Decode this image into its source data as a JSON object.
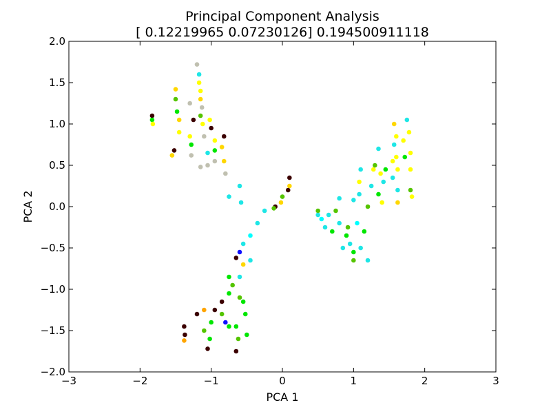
{
  "chart_data": {
    "type": "scatter",
    "title": "Principal Component Analysis",
    "subtitle": "[ 0.12219965  0.07230126] 0.194500911118",
    "xlabel": "PCA 1",
    "ylabel": "PCA 2",
    "xlim": [
      -3,
      3
    ],
    "ylim": [
      -2,
      2
    ],
    "xticks": [
      -3,
      -2,
      -1,
      0,
      1,
      2,
      3
    ],
    "xtick_labels": [
      "−3",
      "−2",
      "−1",
      "0",
      "1",
      "2",
      "3"
    ],
    "yticks": [
      -2,
      -1.5,
      -1,
      -0.5,
      0,
      0.5,
      1,
      1.5,
      2
    ],
    "ytick_labels": [
      "−2.0",
      "−1.5",
      "−1.0",
      "−0.5",
      "0.0",
      "0.5",
      "1.0",
      "1.5",
      "2.0"
    ],
    "grid": false,
    "legend": "none",
    "point_colors": [
      "#3b0000",
      "#00e600",
      "#ffff00",
      "#ffd700",
      "#c0c0b0",
      "#1ee6e6",
      "#55c400",
      "#ffa500",
      "#1010ff",
      "#00ffff"
    ],
    "points": [
      {
        "x": -1.83,
        "y": 1.1,
        "color": "#3b0000"
      },
      {
        "x": -1.83,
        "y": 1.05,
        "color": "#00e600"
      },
      {
        "x": -1.82,
        "y": 1.0,
        "color": "#ffff00"
      },
      {
        "x": -1.52,
        "y": 0.68,
        "color": "#3b0000"
      },
      {
        "x": -1.55,
        "y": 0.62,
        "color": "#ffd700"
      },
      {
        "x": -1.5,
        "y": 1.42,
        "color": "#ffd700"
      },
      {
        "x": -1.5,
        "y": 1.3,
        "color": "#55c400"
      },
      {
        "x": -1.48,
        "y": 1.15,
        "color": "#00e600"
      },
      {
        "x": -1.45,
        "y": 1.05,
        "color": "#ffd700"
      },
      {
        "x": -1.45,
        "y": 0.9,
        "color": "#ffff00"
      },
      {
        "x": -1.3,
        "y": 1.25,
        "color": "#c0c0b0"
      },
      {
        "x": -1.25,
        "y": 1.05,
        "color": "#3b0000"
      },
      {
        "x": -1.3,
        "y": 0.85,
        "color": "#ffff00"
      },
      {
        "x": -1.28,
        "y": 0.75,
        "color": "#00e600"
      },
      {
        "x": -1.28,
        "y": 0.62,
        "color": "#c0c0b0"
      },
      {
        "x": -1.2,
        "y": 1.72,
        "color": "#c0c0b0"
      },
      {
        "x": -1.17,
        "y": 1.6,
        "color": "#1ee6e6"
      },
      {
        "x": -1.17,
        "y": 1.5,
        "color": "#ffff00"
      },
      {
        "x": -1.15,
        "y": 1.4,
        "color": "#ffff00"
      },
      {
        "x": -1.15,
        "y": 1.3,
        "color": "#ffd700"
      },
      {
        "x": -1.13,
        "y": 1.2,
        "color": "#c0c0b0"
      },
      {
        "x": -1.15,
        "y": 1.1,
        "color": "#55c400"
      },
      {
        "x": -1.12,
        "y": 1.0,
        "color": "#ffff00"
      },
      {
        "x": -1.1,
        "y": 0.85,
        "color": "#c0c0b0"
      },
      {
        "x": -1.05,
        "y": 0.65,
        "color": "#1ee6e6"
      },
      {
        "x": -1.05,
        "y": 0.5,
        "color": "#c0c0b0"
      },
      {
        "x": -1.15,
        "y": 0.48,
        "color": "#c0c0b0"
      },
      {
        "x": -1.02,
        "y": 1.05,
        "color": "#ffff00"
      },
      {
        "x": -1.0,
        "y": 0.95,
        "color": "#3b0000"
      },
      {
        "x": -0.95,
        "y": 0.8,
        "color": "#ffff00"
      },
      {
        "x": -0.95,
        "y": 0.68,
        "color": "#00e600"
      },
      {
        "x": -0.95,
        "y": 0.55,
        "color": "#c0c0b0"
      },
      {
        "x": -0.85,
        "y": 0.72,
        "color": "#ffd700"
      },
      {
        "x": -0.82,
        "y": 0.55,
        "color": "#ffd700"
      },
      {
        "x": -0.8,
        "y": 0.4,
        "color": "#c0c0b0"
      },
      {
        "x": -0.82,
        "y": 0.85,
        "color": "#3b0000"
      },
      {
        "x": -0.75,
        "y": 0.12,
        "color": "#1ee6e6"
      },
      {
        "x": -0.6,
        "y": 0.25,
        "color": "#1ee6e6"
      },
      {
        "x": -0.58,
        "y": 0.05,
        "color": "#1ee6e6"
      },
      {
        "x": 0.1,
        "y": 0.35,
        "color": "#3b0000"
      },
      {
        "x": 0.1,
        "y": 0.25,
        "color": "#ffd700"
      },
      {
        "x": 0.08,
        "y": 0.2,
        "color": "#3b0000"
      },
      {
        "x": 0.0,
        "y": 0.12,
        "color": "#55c400"
      },
      {
        "x": -0.02,
        "y": 0.05,
        "color": "#ffd700"
      },
      {
        "x": -0.1,
        "y": 0.0,
        "color": "#3b0000"
      },
      {
        "x": -0.12,
        "y": -0.02,
        "color": "#55c400"
      },
      {
        "x": -0.25,
        "y": -0.05,
        "color": "#1ee6e6"
      },
      {
        "x": -0.35,
        "y": -0.2,
        "color": "#1ee6e6"
      },
      {
        "x": -0.45,
        "y": -0.35,
        "color": "#00ffff"
      },
      {
        "x": -0.55,
        "y": -0.45,
        "color": "#1ee6e6"
      },
      {
        "x": -0.6,
        "y": -0.55,
        "color": "#1010ff"
      },
      {
        "x": -0.65,
        "y": -0.62,
        "color": "#3b0000"
      },
      {
        "x": -0.55,
        "y": -0.7,
        "color": "#ffd700"
      },
      {
        "x": -0.45,
        "y": -0.65,
        "color": "#1ee6e6"
      },
      {
        "x": -0.6,
        "y": -0.85,
        "color": "#1ee6e6"
      },
      {
        "x": -0.7,
        "y": -0.95,
        "color": "#55c400"
      },
      {
        "x": -0.75,
        "y": -0.85,
        "color": "#00e600"
      },
      {
        "x": -0.75,
        "y": -1.05,
        "color": "#00e600"
      },
      {
        "x": -0.85,
        "y": -1.15,
        "color": "#3b0000"
      },
      {
        "x": -0.85,
        "y": -1.3,
        "color": "#55c400"
      },
      {
        "x": -0.6,
        "y": -1.1,
        "color": "#55c400"
      },
      {
        "x": -0.55,
        "y": -1.15,
        "color": "#00e600"
      },
      {
        "x": -0.52,
        "y": -1.3,
        "color": "#00e600"
      },
      {
        "x": -0.5,
        "y": -1.55,
        "color": "#00e600"
      },
      {
        "x": -0.65,
        "y": -1.45,
        "color": "#00e600"
      },
      {
        "x": -0.62,
        "y": -1.6,
        "color": "#55c400"
      },
      {
        "x": -0.65,
        "y": -1.75,
        "color": "#3b0000"
      },
      {
        "x": -0.75,
        "y": -1.45,
        "color": "#00e600"
      },
      {
        "x": -0.8,
        "y": -1.4,
        "color": "#1010ff"
      },
      {
        "x": -0.95,
        "y": -1.25,
        "color": "#3b0000"
      },
      {
        "x": -1.0,
        "y": -1.4,
        "color": "#00e600"
      },
      {
        "x": -1.02,
        "y": -1.6,
        "color": "#00e600"
      },
      {
        "x": -1.05,
        "y": -1.72,
        "color": "#3b0000"
      },
      {
        "x": -1.1,
        "y": -1.5,
        "color": "#55c400"
      },
      {
        "x": -1.1,
        "y": -1.25,
        "color": "#ffa500"
      },
      {
        "x": -1.2,
        "y": -1.3,
        "color": "#3b0000"
      },
      {
        "x": -1.38,
        "y": -1.45,
        "color": "#3b0000"
      },
      {
        "x": -1.37,
        "y": -1.55,
        "color": "#3b0000"
      },
      {
        "x": -1.38,
        "y": -1.62,
        "color": "#ffa500"
      },
      {
        "x": 0.5,
        "y": -0.05,
        "color": "#55c400"
      },
      {
        "x": 0.5,
        "y": -0.1,
        "color": "#1ee6e6"
      },
      {
        "x": 0.55,
        "y": -0.15,
        "color": "#00ffff"
      },
      {
        "x": 0.6,
        "y": -0.25,
        "color": "#1ee6e6"
      },
      {
        "x": 0.65,
        "y": -0.1,
        "color": "#1ee6e6"
      },
      {
        "x": 0.7,
        "y": -0.3,
        "color": "#00e600"
      },
      {
        "x": 0.75,
        "y": -0.05,
        "color": "#55c400"
      },
      {
        "x": 0.8,
        "y": -0.2,
        "color": "#1ee6e6"
      },
      {
        "x": 0.8,
        "y": 0.1,
        "color": "#1ee6e6"
      },
      {
        "x": 0.85,
        "y": -0.5,
        "color": "#1ee6e6"
      },
      {
        "x": 0.9,
        "y": -0.35,
        "color": "#00e600"
      },
      {
        "x": 0.92,
        "y": -0.25,
        "color": "#55c400"
      },
      {
        "x": 0.95,
        "y": -0.45,
        "color": "#1ee6e6"
      },
      {
        "x": 1.0,
        "y": -0.55,
        "color": "#00e600"
      },
      {
        "x": 1.0,
        "y": -0.65,
        "color": "#55c400"
      },
      {
        "x": 1.0,
        "y": 0.08,
        "color": "#1ee6e6"
      },
      {
        "x": 1.05,
        "y": -0.2,
        "color": "#00ffff"
      },
      {
        "x": 1.08,
        "y": 0.15,
        "color": "#1ee6e6"
      },
      {
        "x": 1.08,
        "y": 0.3,
        "color": "#ffff00"
      },
      {
        "x": 1.1,
        "y": -0.5,
        "color": "#1ee6e6"
      },
      {
        "x": 1.1,
        "y": 0.45,
        "color": "#1ee6e6"
      },
      {
        "x": 1.15,
        "y": -0.3,
        "color": "#00e600"
      },
      {
        "x": 1.2,
        "y": -0.65,
        "color": "#1ee6e6"
      },
      {
        "x": 1.2,
        "y": 0.0,
        "color": "#55c400"
      },
      {
        "x": 1.25,
        "y": 0.25,
        "color": "#1ee6e6"
      },
      {
        "x": 1.28,
        "y": 0.45,
        "color": "#ffff00"
      },
      {
        "x": 1.3,
        "y": 0.5,
        "color": "#55c400"
      },
      {
        "x": 1.35,
        "y": 0.7,
        "color": "#1ee6e6"
      },
      {
        "x": 1.35,
        "y": 0.15,
        "color": "#00e600"
      },
      {
        "x": 1.38,
        "y": 0.4,
        "color": "#ffff00"
      },
      {
        "x": 1.4,
        "y": 0.05,
        "color": "#ffff00"
      },
      {
        "x": 1.42,
        "y": 0.3,
        "color": "#1ee6e6"
      },
      {
        "x": 1.45,
        "y": 0.45,
        "color": "#00e600"
      },
      {
        "x": 1.55,
        "y": 0.35,
        "color": "#1ee6e6"
      },
      {
        "x": 1.55,
        "y": 0.55,
        "color": "#ffff00"
      },
      {
        "x": 1.57,
        "y": 0.75,
        "color": "#1ee6e6"
      },
      {
        "x": 1.57,
        "y": 1.0,
        "color": "#ffd700"
      },
      {
        "x": 1.6,
        "y": 0.85,
        "color": "#ffff00"
      },
      {
        "x": 1.6,
        "y": 0.6,
        "color": "#ffff00"
      },
      {
        "x": 1.62,
        "y": 0.45,
        "color": "#ffff00"
      },
      {
        "x": 1.62,
        "y": 0.2,
        "color": "#1ee6e6"
      },
      {
        "x": 1.62,
        "y": 0.05,
        "color": "#ffd700"
      },
      {
        "x": 1.7,
        "y": 0.8,
        "color": "#ffff00"
      },
      {
        "x": 1.72,
        "y": 0.6,
        "color": "#00e600"
      },
      {
        "x": 1.75,
        "y": 1.05,
        "color": "#1ee6e6"
      },
      {
        "x": 1.78,
        "y": 0.9,
        "color": "#ffff00"
      },
      {
        "x": 1.8,
        "y": 0.65,
        "color": "#ffff00"
      },
      {
        "x": 1.8,
        "y": 0.45,
        "color": "#ffff00"
      },
      {
        "x": 1.8,
        "y": 0.2,
        "color": "#55c400"
      },
      {
        "x": 1.82,
        "y": 0.12,
        "color": "#ffff00"
      }
    ]
  }
}
